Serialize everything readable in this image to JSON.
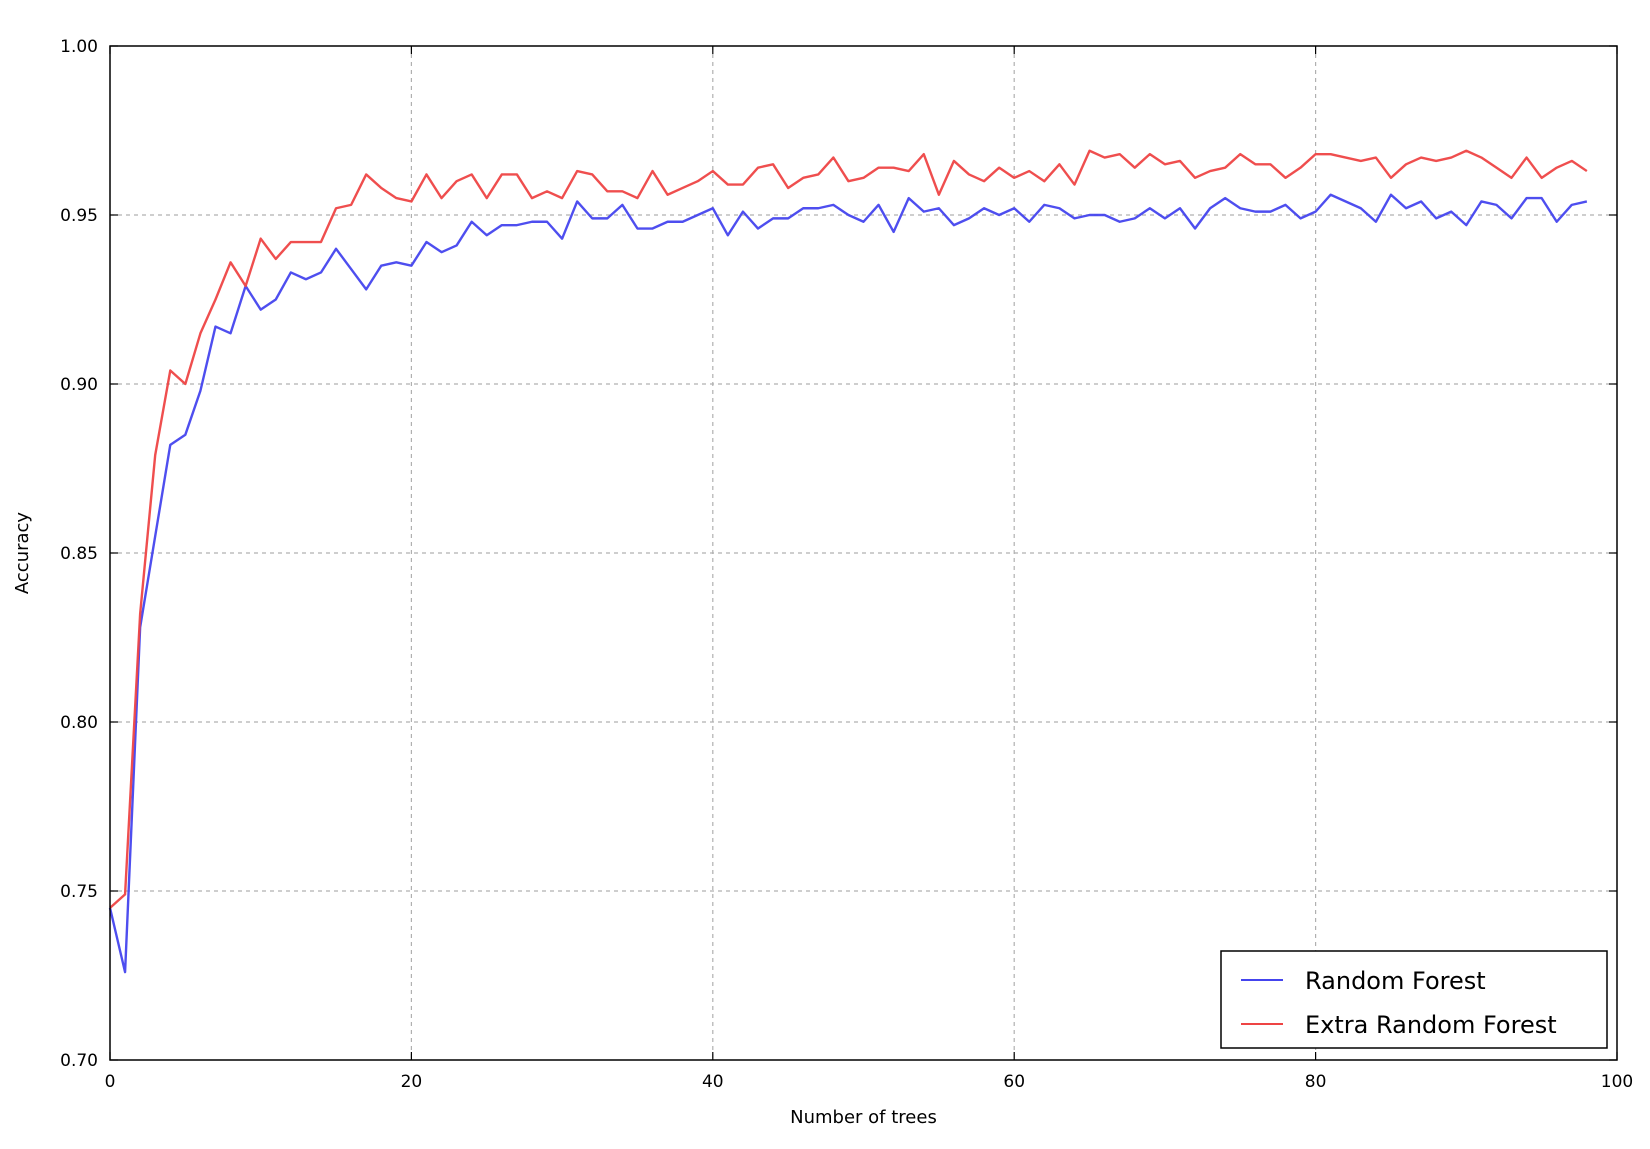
{
  "chart_data": {
    "type": "line",
    "title": "",
    "xlabel": "Number of trees",
    "ylabel": "Accuracy",
    "xlim": [
      0,
      100
    ],
    "ylim": [
      0.7,
      1.0
    ],
    "xticks": [
      0,
      20,
      40,
      60,
      80,
      100
    ],
    "xtick_labels": [
      "0",
      "20",
      "40",
      "60",
      "80",
      "100"
    ],
    "yticks": [
      0.7,
      0.75,
      0.8,
      0.85,
      0.9,
      0.95,
      1.0
    ],
    "ytick_labels": [
      "0.70",
      "0.75",
      "0.80",
      "0.85",
      "0.90",
      "0.95",
      "1.00"
    ],
    "grid": true,
    "legend_position": "bottom-right",
    "series": [
      {
        "name": "Random Forest",
        "color": "#4444ee",
        "x": [
          0,
          1,
          2,
          3,
          4,
          5,
          6,
          7,
          8,
          9,
          10,
          11,
          12,
          13,
          14,
          15,
          16,
          17,
          18,
          19,
          20,
          21,
          22,
          23,
          24,
          25,
          26,
          27,
          28,
          29,
          30,
          31,
          32,
          33,
          34,
          35,
          36,
          37,
          38,
          39,
          40,
          41,
          42,
          43,
          44,
          45,
          46,
          47,
          48,
          49,
          50,
          51,
          52,
          53,
          54,
          55,
          56,
          57,
          58,
          59,
          60,
          61,
          62,
          63,
          64,
          65,
          66,
          67,
          68,
          69,
          70,
          71,
          72,
          73,
          74,
          75,
          76,
          77,
          78,
          79,
          80,
          81,
          82,
          83,
          84,
          85,
          86,
          87,
          88,
          89,
          90,
          91,
          92,
          93,
          94,
          95,
          96,
          97,
          98
        ],
        "values": [
          0.745,
          0.726,
          0.828,
          0.855,
          0.882,
          0.885,
          0.898,
          0.917,
          0.915,
          0.929,
          0.922,
          0.925,
          0.933,
          0.931,
          0.933,
          0.94,
          0.934,
          0.928,
          0.935,
          0.936,
          0.935,
          0.942,
          0.939,
          0.941,
          0.948,
          0.944,
          0.947,
          0.947,
          0.948,
          0.948,
          0.943,
          0.954,
          0.949,
          0.949,
          0.953,
          0.946,
          0.946,
          0.948,
          0.948,
          0.95,
          0.952,
          0.944,
          0.951,
          0.946,
          0.949,
          0.949,
          0.952,
          0.952,
          0.953,
          0.95,
          0.948,
          0.953,
          0.945,
          0.955,
          0.951,
          0.952,
          0.947,
          0.949,
          0.952,
          0.95,
          0.952,
          0.948,
          0.953,
          0.952,
          0.949,
          0.95,
          0.95,
          0.948,
          0.949,
          0.952,
          0.949,
          0.952,
          0.946,
          0.952,
          0.955,
          0.952,
          0.951,
          0.951,
          0.953,
          0.949,
          0.951,
          0.956,
          0.954,
          0.952,
          0.948,
          0.956,
          0.952,
          0.954,
          0.949,
          0.951,
          0.947,
          0.954,
          0.953,
          0.949,
          0.955,
          0.955,
          0.948,
          0.953,
          0.954
        ]
      },
      {
        "name": "Extra Random Forest",
        "color": "#ee4444",
        "x": [
          0,
          1,
          2,
          3,
          4,
          5,
          6,
          7,
          8,
          9,
          10,
          11,
          12,
          13,
          14,
          15,
          16,
          17,
          18,
          19,
          20,
          21,
          22,
          23,
          24,
          25,
          26,
          27,
          28,
          29,
          30,
          31,
          32,
          33,
          34,
          35,
          36,
          37,
          38,
          39,
          40,
          41,
          42,
          43,
          44,
          45,
          46,
          47,
          48,
          49,
          50,
          51,
          52,
          53,
          54,
          55,
          56,
          57,
          58,
          59,
          60,
          61,
          62,
          63,
          64,
          65,
          66,
          67,
          68,
          69,
          70,
          71,
          72,
          73,
          74,
          75,
          76,
          77,
          78,
          79,
          80,
          81,
          82,
          83,
          84,
          85,
          86,
          87,
          88,
          89,
          90,
          91,
          92,
          93,
          94,
          95,
          96,
          97,
          98
        ],
        "values": [
          0.745,
          0.749,
          0.832,
          0.879,
          0.904,
          0.9,
          0.915,
          0.925,
          0.936,
          0.929,
          0.943,
          0.937,
          0.942,
          0.942,
          0.942,
          0.952,
          0.953,
          0.962,
          0.958,
          0.955,
          0.954,
          0.962,
          0.955,
          0.96,
          0.962,
          0.955,
          0.962,
          0.962,
          0.955,
          0.957,
          0.955,
          0.963,
          0.962,
          0.957,
          0.957,
          0.955,
          0.963,
          0.956,
          0.958,
          0.96,
          0.963,
          0.959,
          0.959,
          0.964,
          0.965,
          0.958,
          0.961,
          0.962,
          0.967,
          0.96,
          0.961,
          0.964,
          0.964,
          0.963,
          0.968,
          0.956,
          0.966,
          0.962,
          0.96,
          0.964,
          0.961,
          0.963,
          0.96,
          0.965,
          0.959,
          0.969,
          0.967,
          0.968,
          0.964,
          0.968,
          0.965,
          0.966,
          0.961,
          0.963,
          0.964,
          0.968,
          0.965,
          0.965,
          0.961,
          0.964,
          0.968,
          0.968,
          0.967,
          0.966,
          0.967,
          0.961,
          0.965,
          0.967,
          0.966,
          0.967,
          0.969,
          0.967,
          0.964,
          0.961,
          0.967,
          0.961,
          0.964,
          0.966,
          0.963
        ]
      }
    ]
  }
}
